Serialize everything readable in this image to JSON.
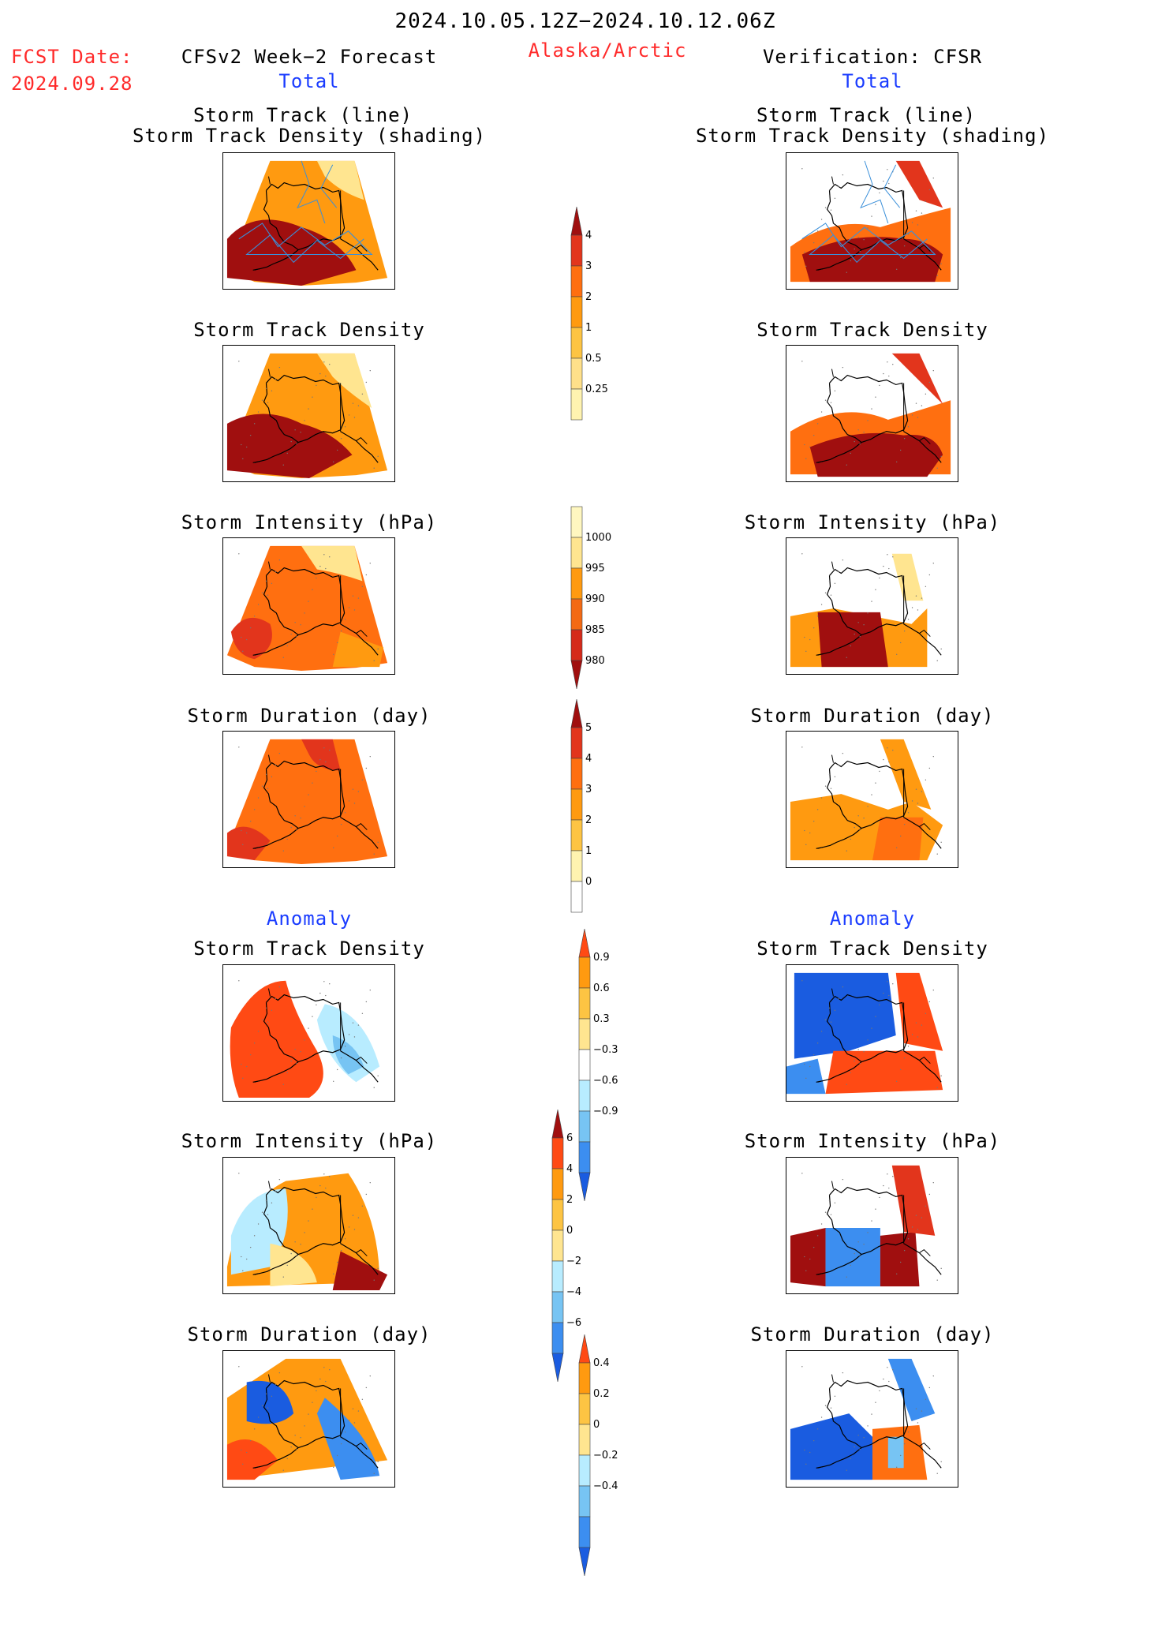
{
  "header": {
    "period": "2024.10.05.12Z−2024.10.12.06Z",
    "region": "Alaska/Arctic",
    "fcst_label": "FCST Date:",
    "fcst_date": "2024.09.28",
    "left_title": "CFSv2 Week−2 Forecast",
    "right_title": "Verification: CFSR",
    "total_label": "Total",
    "anomaly_label": "Anomaly"
  },
  "panels": {
    "track_line": "Storm Track (line)",
    "track_density_shading": "Storm Track Density (shading)",
    "track_density": "Storm Track Density",
    "intensity": "Storm Intensity (hPa)",
    "duration": "Storm Duration (day)"
  },
  "chart_data": [
    {
      "type": "heatmap",
      "title": "Storm Track Density",
      "section": "Total",
      "colorbar": {
        "levels": [
          0.25,
          0.5,
          1,
          2,
          3,
          4
        ],
        "colors": [
          "#fff3b0",
          "#ffe08a",
          "#fdc443",
          "#ff9a10",
          "#ff6f10",
          "#e2351c",
          "#a00f0f"
        ]
      }
    },
    {
      "type": "heatmap",
      "title": "Storm Intensity (hPa)",
      "section": "Total",
      "colorbar": {
        "levels": [
          1000,
          995,
          990,
          985,
          980
        ],
        "colors": [
          "#fff7c0",
          "#ffe590",
          "#ff9a10",
          "#f36a14",
          "#d52a1a",
          "#a00f0f"
        ]
      }
    },
    {
      "type": "heatmap",
      "title": "Storm Duration (day)",
      "section": "Total",
      "colorbar": {
        "levels": [
          0,
          1,
          2,
          3,
          4,
          5
        ],
        "colors": [
          "#ffffff",
          "#fff3b0",
          "#fdc443",
          "#ff9a10",
          "#ff6f10",
          "#e2351c",
          "#a00f0f"
        ]
      }
    },
    {
      "type": "heatmap",
      "title": "Storm Track Density",
      "section": "Anomaly",
      "colorbar": {
        "levels": [
          0.9,
          0.6,
          0.3,
          -0.3,
          -0.6,
          -0.9
        ],
        "colors": [
          "#ff4a14",
          "#ff9a10",
          "#fdc443",
          "#ffe590",
          "#ffffff",
          "#b8ecff",
          "#77c4f3",
          "#3c8ef0",
          "#1a5ce0"
        ]
      }
    },
    {
      "type": "heatmap",
      "title": "Storm Intensity (hPa)",
      "section": "Anomaly",
      "colorbar": {
        "levels": [
          6,
          4,
          2,
          0,
          -2,
          -4,
          -6
        ],
        "colors": [
          "#a00f0f",
          "#ff4a14",
          "#ff9a10",
          "#fdc443",
          "#ffe590",
          "#b8ecff",
          "#77c4f3",
          "#3c8ef0",
          "#1a5ce0"
        ]
      }
    },
    {
      "type": "heatmap",
      "title": "Storm Duration (day)",
      "section": "Anomaly",
      "colorbar": {
        "levels": [
          0.4,
          0.2,
          0,
          -0.2,
          -0.4
        ],
        "colors": [
          "#ff4a14",
          "#ff9a10",
          "#fdc443",
          "#ffe590",
          "#b8ecff",
          "#77c4f3",
          "#3c8ef0",
          "#1a5ce0"
        ]
      }
    }
  ]
}
